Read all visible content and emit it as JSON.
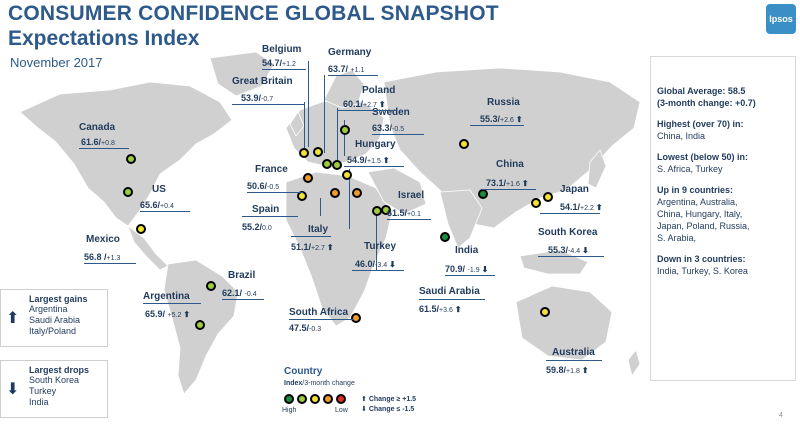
{
  "header": {
    "title_line1": "CONSUMER CONFIDENCE GLOBAL SNAPSHOT",
    "title_line2": "Expectations Index",
    "subtitle": "November 2017",
    "logo_text": "Ipsos"
  },
  "colors": {
    "dark_green": "#1e8a3c",
    "light_green": "#9ccc3c",
    "yellow": "#f3e331",
    "orange": "#f09a2a",
    "red": "#e02b2b",
    "land": "#d0d0d0",
    "text": "#1f3a5c"
  },
  "countries": [
    {
      "name": "Belgium",
      "index": "54.7",
      "change": "+1.2",
      "arrow": "",
      "level": "yellow"
    },
    {
      "name": "Germany",
      "index": "63.7",
      "change": "+1.1",
      "arrow": "",
      "level": "light_green"
    },
    {
      "name": "Great Britain",
      "index": "53.9",
      "change": "-0.7",
      "arrow": "",
      "level": "yellow"
    },
    {
      "name": "Poland",
      "index": "60.1",
      "change": "+2.7",
      "arrow": "⬆",
      "level": "light_green"
    },
    {
      "name": "Sweden",
      "index": "63.3",
      "change": "-0.5",
      "arrow": "",
      "level": "light_green"
    },
    {
      "name": "Russia",
      "index": "55.3",
      "change": "+2.6",
      "arrow": "⬆",
      "level": "yellow"
    },
    {
      "name": "Canada",
      "index": "61.6",
      "change": "+0.8",
      "arrow": "",
      "level": "light_green"
    },
    {
      "name": "Hungary",
      "index": "54.9",
      "change": "+1.5",
      "arrow": "⬆",
      "level": "yellow"
    },
    {
      "name": "France",
      "index": "50.6",
      "change": "-0.5",
      "arrow": "",
      "level": "orange"
    },
    {
      "name": "China",
      "index": "73.1",
      "change": "+1.6",
      "arrow": "⬆",
      "level": "dark_green"
    },
    {
      "name": "US",
      "index": "65.6",
      "change": "+0.4",
      "arrow": "",
      "level": "light_green"
    },
    {
      "name": "Israel",
      "index": "61.5",
      "change": "+0.1",
      "arrow": "",
      "level": "light_green"
    },
    {
      "name": "Japan",
      "index": "54.1",
      "change": "+2.2",
      "arrow": "⬆",
      "level": "yellow"
    },
    {
      "name": "Spain",
      "index": "55.2",
      "change": "0.0",
      "arrow": "",
      "level": "yellow"
    },
    {
      "name": "Italy",
      "index": "51.1",
      "change": "+2.7",
      "arrow": "⬆",
      "level": "orange"
    },
    {
      "name": "Turkey",
      "index": "46.0",
      "change": "-3.4",
      "arrow": "⬇",
      "level": "orange"
    },
    {
      "name": "South Korea",
      "index": "55.3",
      "change": "-4.4",
      "arrow": "⬇",
      "level": "yellow"
    },
    {
      "name": "Mexico",
      "index": "56.8",
      "change": "+1.3",
      "arrow": "",
      "level": "yellow"
    },
    {
      "name": "India",
      "index": "70.9",
      "change": "-1.9",
      "arrow": "⬇",
      "level": "dark_green"
    },
    {
      "name": "Brazil",
      "index": "62.1",
      "change": "-0.4",
      "arrow": "",
      "level": "light_green"
    },
    {
      "name": "Saudi Arabia",
      "index": "61.5",
      "change": "+3.6",
      "arrow": "⬆",
      "level": "light_green"
    },
    {
      "name": "Argentina",
      "index": "65.9",
      "change": "+5.2",
      "arrow": "⬆",
      "level": "light_green"
    },
    {
      "name": "South Africa",
      "index": "47.5",
      "change": "-0.3",
      "arrow": "",
      "level": "orange"
    },
    {
      "name": "Australia",
      "index": "59.8",
      "change": "+1.8",
      "arrow": "⬆",
      "level": "yellow"
    }
  ],
  "summary": {
    "global_average": "Global Average: 58.5",
    "three_month": "(3-month change: +0.7)",
    "highest_title": "Highest (over 70) in:",
    "highest_list": "China, India",
    "lowest_title": "Lowest (below 50) in:",
    "lowest_list": "S. Africa, Turkey",
    "up_title": "Up in 9 countries:",
    "up_list": [
      "Argentina, Australia,",
      "China, Hungary, Italy,",
      "Japan, Poland, Russia,",
      "S. Arabia,"
    ],
    "down_title": "Down in 3 countries:",
    "down_list": "India, Turkey, S. Korea"
  },
  "largest_gains": {
    "title": "Largest gains",
    "items": [
      "Argentina",
      "Saudi Arabia",
      "Italy/Poland"
    ]
  },
  "largest_drops": {
    "title": "Largest drops",
    "items": [
      "South Korea",
      "Turkey",
      "India"
    ]
  },
  "legend": {
    "title": "Country",
    "subtitle_bold": "Index",
    "subtitle_rest": "/3-month change",
    "high": "High",
    "low": "Low",
    "up": "Change ≥ +1.5",
    "down": "Change ≤ -1.5"
  },
  "page_number": "4"
}
